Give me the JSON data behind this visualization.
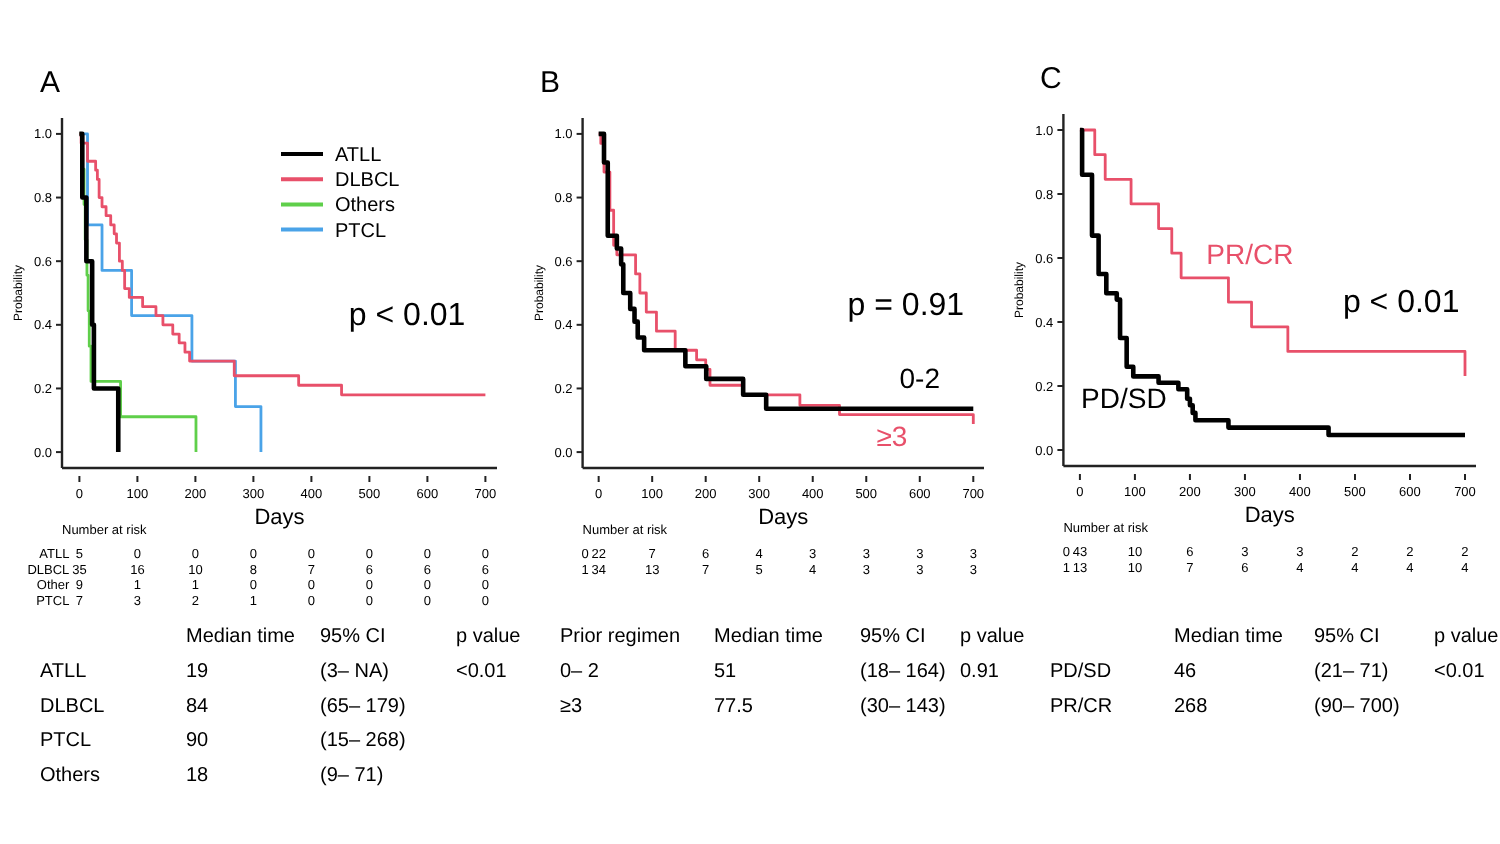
{
  "chart_data": [
    {
      "type": "step",
      "title": "A",
      "xlabel": "Days",
      "ylabel": "Probability",
      "xlim": [
        -30,
        720
      ],
      "ylim": [
        -0.05,
        1.05
      ],
      "xticks": [
        0,
        100,
        200,
        300,
        400,
        500,
        600,
        700
      ],
      "yticks": [
        {
          "value": 0,
          "label": "0.0"
        },
        {
          "value": 0.2,
          "label": "0.2"
        },
        {
          "value": 0.4,
          "label": "0.4"
        },
        {
          "value": 0.6,
          "label": "0.6"
        },
        {
          "value": 0.8,
          "label": "0.8"
        },
        {
          "value": 1,
          "label": "1.0"
        }
      ],
      "legend": "top right",
      "grid": false,
      "series": [
        {
          "name": "ATLL",
          "color": "#000000",
          "x": [
            0,
            5,
            12,
            22,
            25,
            67
          ],
          "values": [
            1,
            0.8,
            0.6,
            0.4,
            0.2,
            0
          ]
        },
        {
          "name": "DLBCL",
          "color": "#e8506a",
          "x": [
            0,
            3,
            14,
            28,
            31,
            34,
            39,
            46,
            54,
            60,
            64,
            69,
            74,
            78,
            86,
            109,
            132,
            144,
            161,
            172,
            182,
            190,
            267,
            378,
            452,
            700
          ],
          "values": [
            1,
            0.971,
            0.914,
            0.886,
            0.857,
            0.8,
            0.771,
            0.743,
            0.714,
            0.686,
            0.657,
            0.6,
            0.571,
            0.514,
            0.486,
            0.457,
            0.429,
            0.4,
            0.371,
            0.343,
            0.314,
            0.286,
            0.24,
            0.21,
            0.18,
            0.18
          ]
        },
        {
          "name": "Others",
          "color": "#5fcf4a",
          "x": [
            0,
            5,
            8,
            10,
            13,
            15,
            17,
            20,
            71,
            201
          ],
          "values": [
            1,
            0.889,
            0.778,
            0.667,
            0.556,
            0.444,
            0.333,
            0.222,
            0.111,
            0
          ]
        },
        {
          "name": "PTCL",
          "color": "#4aa3e8",
          "x": [
            0,
            14,
            39,
            90,
            194,
            269,
            313
          ],
          "values": [
            1,
            0.714,
            0.571,
            0.429,
            0.286,
            0.143,
            0
          ]
        }
      ],
      "annotations": [
        "p < 0.01",
        "Number at risk",
        "ATLL\t5\t0\t0\t0\t0\t0\t0\t0",
        "DLBCL\t35\t16\t10\t8\t7\t6\t6\t6",
        "Other\t9\t1\t1\t0\t0\t0\t0\t0",
        "PTCL\t7\t3\t2\t1\t0\t0\t0\t0",
        "\tMedian time\t95% CI\tp value",
        "ATLL\t19\t(3– NA)\t<0.01",
        "DLBCL\t84\t(65– 179)",
        "PTCL\t90\t(15– 268)",
        "Others\t18\t(9– 71)"
      ]
    },
    {
      "type": "step",
      "title": "B",
      "xlabel": "Days",
      "ylabel": "Probability",
      "xlim": [
        -30,
        720
      ],
      "ylim": [
        -0.05,
        1.05
      ],
      "xticks": [
        0,
        100,
        200,
        300,
        400,
        500,
        600,
        700
      ],
      "yticks": [
        {
          "value": 0,
          "label": "0.0"
        },
        {
          "value": 0.2,
          "label": "0.2"
        },
        {
          "value": 0.4,
          "label": "0.4"
        },
        {
          "value": 0.6,
          "label": "0.6"
        },
        {
          "value": 0.8,
          "label": "0.8"
        },
        {
          "value": 1,
          "label": "1.0"
        }
      ],
      "legend": false,
      "grid": false,
      "series": [
        {
          "name": "0-2",
          "color": "#000000",
          "x": [
            0,
            10,
            17,
            34,
            42,
            46,
            59,
            67,
            73,
            85,
            162,
            201,
            270,
            313,
            700
          ],
          "values": [
            1,
            0.91,
            0.68,
            0.64,
            0.59,
            0.5,
            0.45,
            0.41,
            0.36,
            0.32,
            0.27,
            0.23,
            0.18,
            0.136,
            0.136
          ]
        },
        {
          "name": "≥3",
          "color": "#e8506a",
          "x": [
            0,
            4,
            10,
            21,
            28,
            34,
            69,
            77,
            89,
            108,
            143,
            183,
            200,
            208,
            270,
            376,
            450,
            700
          ],
          "values": [
            1,
            0.97,
            0.88,
            0.76,
            0.65,
            0.62,
            0.56,
            0.5,
            0.44,
            0.38,
            0.32,
            0.29,
            0.26,
            0.21,
            0.18,
            0.147,
            0.118,
            0.088
          ]
        }
      ],
      "annotations": [
        "p = 0.91",
        "Number at risk",
        "0\t22\t7\t6\t4\t3\t3\t3\t3",
        "1\t34\t13\t7\t5\t4\t3\t3\t3",
        "Prior regimen\tMedian time\t95% CI\tp value",
        "0– 2\t51\t(18– 164)\t0.91",
        "≥3\t77.5\t(30– 143)"
      ]
    },
    {
      "type": "step",
      "title": "C",
      "xlabel": "Days",
      "ylabel": "Probability",
      "xlim": [
        -30,
        720
      ],
      "ylim": [
        -0.05,
        1.05
      ],
      "xticks": [
        0,
        100,
        200,
        300,
        400,
        500,
        600,
        700
      ],
      "yticks": [
        {
          "value": 0,
          "label": "0.0"
        },
        {
          "value": 0.2,
          "label": "0.2"
        },
        {
          "value": 0.4,
          "label": "0.4"
        },
        {
          "value": 0.6,
          "label": "0.6"
        },
        {
          "value": 0.8,
          "label": "0.8"
        },
        {
          "value": 1,
          "label": "1.0"
        }
      ],
      "legend": false,
      "grid": false,
      "series": [
        {
          "name": "PD/SD",
          "color": "#000000",
          "x": [
            0,
            4,
            22,
            34,
            48,
            67,
            73,
            85,
            97,
            143,
            179,
            195,
            200,
            205,
            210,
            270,
            452,
            700
          ],
          "values": [
            1,
            0.86,
            0.67,
            0.55,
            0.49,
            0.47,
            0.35,
            0.26,
            0.23,
            0.21,
            0.19,
            0.16,
            0.14,
            0.116,
            0.093,
            0.07,
            0.047,
            0.047
          ]
        },
        {
          "name": "PR/CR",
          "color": "#e8506a",
          "x": [
            0,
            27,
            46,
            93,
            143,
            167,
            184,
            270,
            312,
            378,
            700
          ],
          "values": [
            1,
            0.923,
            0.846,
            0.769,
            0.692,
            0.615,
            0.538,
            0.462,
            0.385,
            0.308,
            0.231
          ]
        }
      ],
      "annotations": [
        "p < 0.01",
        "Number at risk",
        "0\t43\t10\t6\t3\t3\t2\t2\t2",
        "1\t13\t10\t7\t6\t4\t4\t4\t4",
        "\tMedian time\t95% CI\tp value",
        "PD/SD\t46\t(21– 71)\t<0.01",
        "PR/CR\t268\t(90– 700)"
      ]
    }
  ]
}
